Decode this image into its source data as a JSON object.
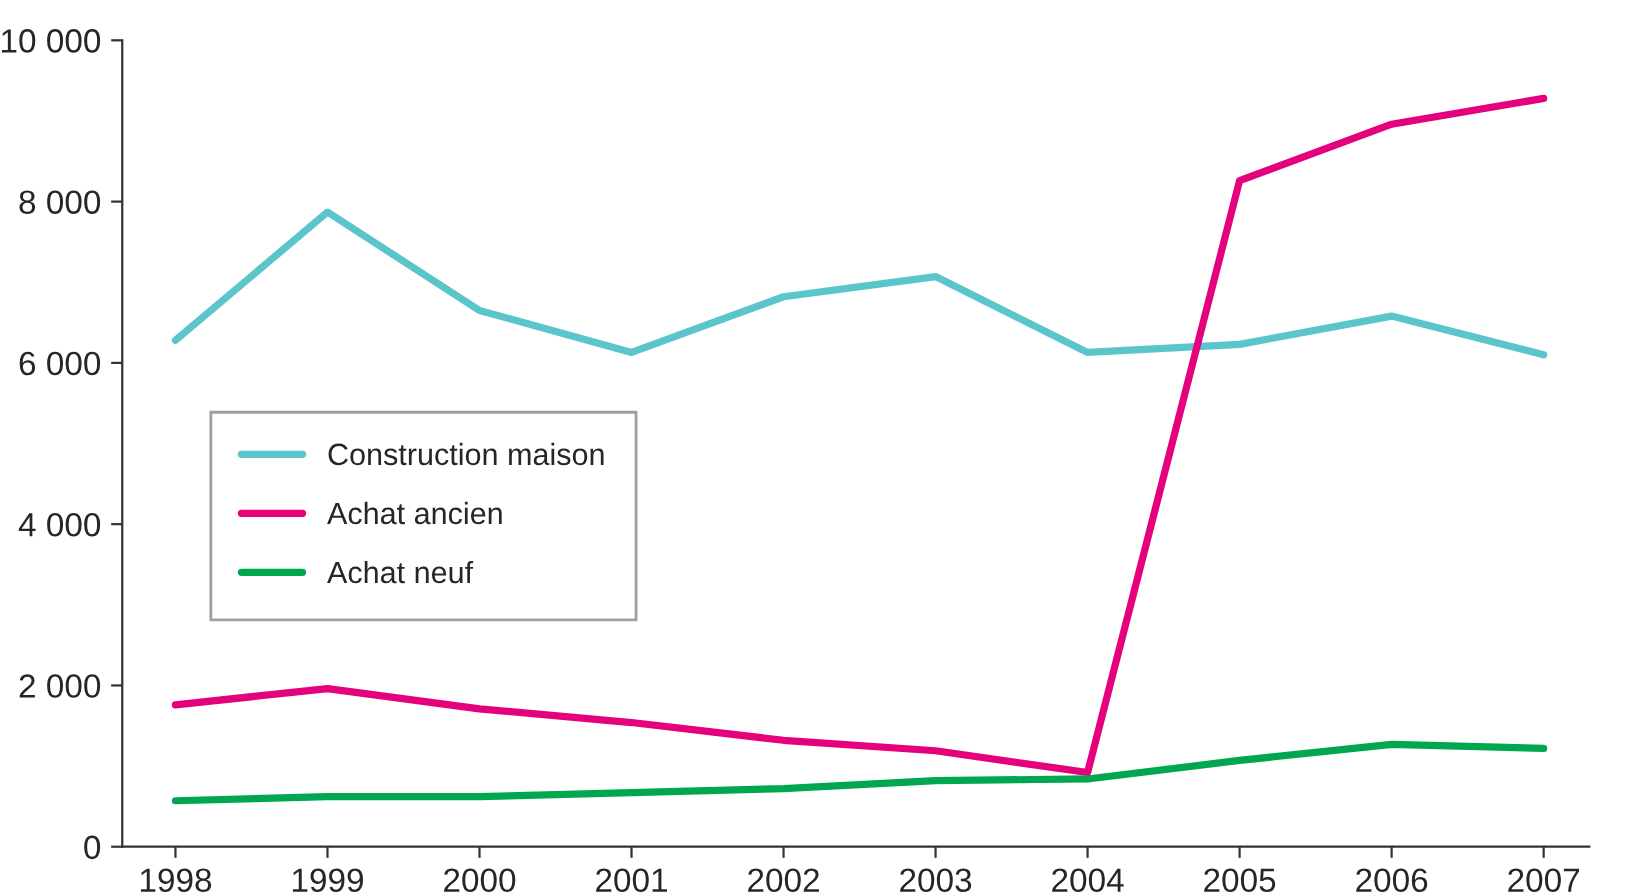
{
  "chart_data": {
    "type": "line",
    "categories": [
      "1998",
      "1999",
      "2000",
      "2001",
      "2002",
      "2003",
      "2004",
      "2005",
      "2006",
      "2007"
    ],
    "series": [
      {
        "name": "Construction maison",
        "color": "#5bc5cc",
        "values": [
          6280,
          7870,
          6650,
          6130,
          6820,
          7070,
          6130,
          6230,
          6580,
          6100
        ]
      },
      {
        "name": "Achat ancien",
        "color": "#e5007d",
        "values": [
          1760,
          1960,
          1710,
          1540,
          1320,
          1190,
          920,
          8260,
          8960,
          9280
        ]
      },
      {
        "name": "Achat neuf",
        "color": "#00a650",
        "values": [
          570,
          620,
          620,
          670,
          720,
          820,
          840,
          1070,
          1270,
          1220
        ]
      }
    ],
    "ylim": [
      0,
      10000
    ],
    "yticks": [
      0,
      {
        "value": 2000,
        "label": "2 000"
      },
      {
        "value": 4000,
        "label": "4 000"
      },
      {
        "value": 6000,
        "label": "6 000"
      },
      {
        "value": 8000,
        "label": "8 000"
      },
      {
        "value": 10000,
        "label": "10 000"
      }
    ],
    "grid": false,
    "legend": "left",
    "marker": "none",
    "line_style": "solid"
  }
}
